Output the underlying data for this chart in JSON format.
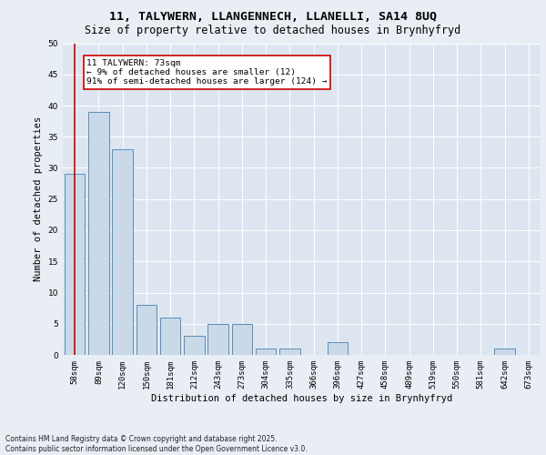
{
  "title_line1": "11, TALYWERN, LLANGENNECH, LLANELLI, SA14 8UQ",
  "title_line2": "Size of property relative to detached houses in Brynhyfryd",
  "xlabel": "Distribution of detached houses by size in Brynhyfryd",
  "ylabel": "Number of detached properties",
  "categories": [
    "58sqm",
    "89sqm",
    "120sqm",
    "150sqm",
    "181sqm",
    "212sqm",
    "243sqm",
    "273sqm",
    "304sqm",
    "335sqm",
    "366sqm",
    "396sqm",
    "427sqm",
    "458sqm",
    "489sqm",
    "519sqm",
    "550sqm",
    "581sqm",
    "642sqm",
    "673sqm"
  ],
  "values": [
    29,
    39,
    33,
    8,
    6,
    3,
    5,
    5,
    1,
    1,
    0,
    2,
    0,
    0,
    0,
    0,
    0,
    0,
    1,
    0
  ],
  "bar_color": "#c9d9e8",
  "bar_edge_color": "#5b8db8",
  "highlight_color": "#cc0000",
  "annotation_text": "11 TALYWERN: 73sqm\n← 9% of detached houses are smaller (12)\n91% of semi-detached houses are larger (124) →",
  "annotation_box_color": "#ffffff",
  "annotation_box_edge": "#cc0000",
  "ylim": [
    0,
    50
  ],
  "yticks": [
    0,
    5,
    10,
    15,
    20,
    25,
    30,
    35,
    40,
    45,
    50
  ],
  "background_color": "#e8eef4",
  "plot_bg_color": "#dde6f0",
  "footer": "Contains HM Land Registry data © Crown copyright and database right 2025.\nContains public sector information licensed under the Open Government Licence v3.0.",
  "grid_color": "#ffffff",
  "title1_fontsize": 9.5,
  "title2_fontsize": 8.5,
  "axis_label_fontsize": 7.5,
  "tick_fontsize": 6.5,
  "annotation_fontsize": 6.8,
  "footer_fontsize": 5.5
}
